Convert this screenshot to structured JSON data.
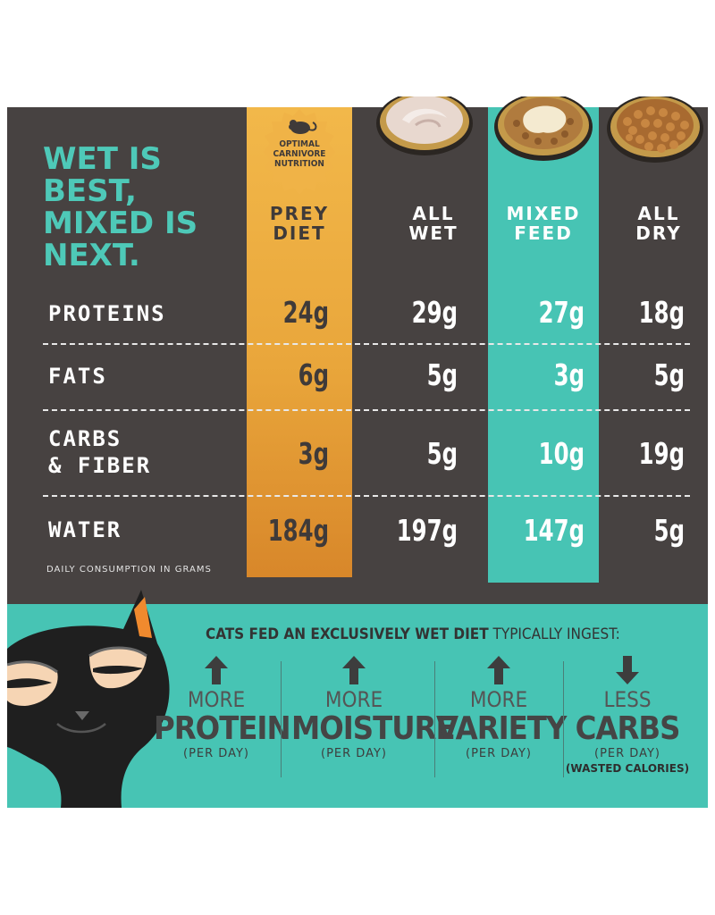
{
  "headline": [
    "WET IS",
    "BEST,",
    "MIXED IS",
    "NEXT."
  ],
  "seal": {
    "lines": [
      "OPTIMAL",
      "CARNIVORE",
      "NUTRITION"
    ]
  },
  "columns": [
    {
      "key": "prey",
      "lines": [
        "PREY",
        "DIET"
      ]
    },
    {
      "key": "wet",
      "lines": [
        "ALL",
        "WET"
      ]
    },
    {
      "key": "mixed",
      "lines": [
        "MIXED",
        "FEED"
      ]
    },
    {
      "key": "dry",
      "lines": [
        "ALL",
        "DRY"
      ]
    }
  ],
  "rows": [
    {
      "label": [
        "PROTEINS"
      ],
      "values": [
        "24g",
        "29g",
        "27g",
        "18g"
      ]
    },
    {
      "label": [
        "FATS"
      ],
      "values": [
        "6g",
        "5g",
        "3g",
        "5g"
      ]
    },
    {
      "label": [
        "CARBS",
        "& FIBER"
      ],
      "values": [
        "3g",
        "5g",
        "10g",
        "19g"
      ]
    },
    {
      "label": [
        "WATER"
      ],
      "values": [
        "184g",
        "197g",
        "147g",
        "5g"
      ]
    }
  ],
  "footnote": "DAILY CONSUMPTION IN GRAMS",
  "ingest": {
    "bold": "CATS FED AN EXCLUSIVELY WET DIET",
    "rest": " TYPICALLY INGEST:"
  },
  "benefits": [
    {
      "direction": "up",
      "small": "MORE",
      "big": "PROTEIN",
      "perday": "(PER DAY)",
      "extra": ""
    },
    {
      "direction": "up",
      "small": "MORE",
      "big": "MOISTURE",
      "perday": "(PER DAY)",
      "extra": ""
    },
    {
      "direction": "up",
      "small": "MORE",
      "big": "VARIETY",
      "perday": "(PER DAY)",
      "extra": ""
    },
    {
      "direction": "down",
      "small": "LESS",
      "big": "CARBS",
      "perday": "(PER DAY)",
      "extra": "(WASTED CALORIES)"
    }
  ],
  "colors": {
    "panel": "#474241",
    "accent": "#47c4b4",
    "headline": "#4ec9b8",
    "prey": "#e9a63b"
  },
  "icons": [
    "mouse-icon",
    "arrow-up-icon",
    "arrow-down-icon",
    "cat-illustration"
  ]
}
